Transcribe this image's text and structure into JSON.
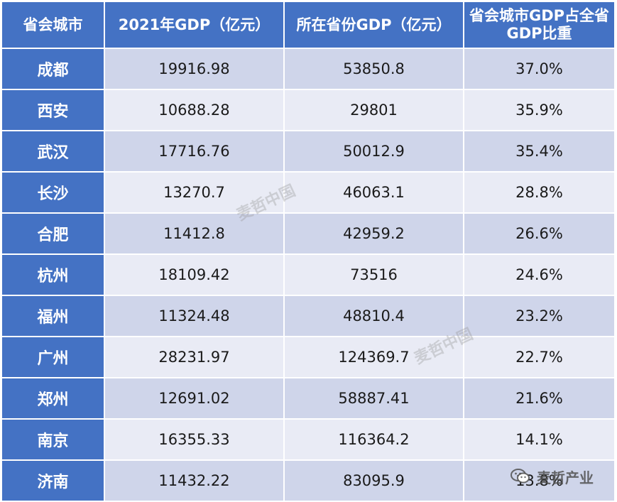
{
  "table": {
    "headers": [
      "省会城市",
      "2021年GDP（亿元）",
      "所在省份GDP（亿元）",
      "省会城市GDP占全省GDP比重"
    ],
    "rows": [
      {
        "city": "成都",
        "gdp": "19916.98",
        "province_gdp": "53850.8",
        "ratio": "37.0%"
      },
      {
        "city": "西安",
        "gdp": "10688.28",
        "province_gdp": "29801",
        "ratio": "35.9%"
      },
      {
        "city": "武汉",
        "gdp": "17716.76",
        "province_gdp": "50012.9",
        "ratio": "35.4%"
      },
      {
        "city": "长沙",
        "gdp": "13270.7",
        "province_gdp": "46063.1",
        "ratio": "28.8%"
      },
      {
        "city": "合肥",
        "gdp": "11412.8",
        "province_gdp": "42959.2",
        "ratio": "26.6%"
      },
      {
        "city": "杭州",
        "gdp": "18109.42",
        "province_gdp": "73516",
        "ratio": "24.6%"
      },
      {
        "city": "福州",
        "gdp": "11324.48",
        "province_gdp": "48810.4",
        "ratio": "23.2%"
      },
      {
        "city": "广州",
        "gdp": "28231.97",
        "province_gdp": "124369.7",
        "ratio": "22.7%"
      },
      {
        "city": "郑州",
        "gdp": "12691.02",
        "province_gdp": "58887.41",
        "ratio": "21.6%"
      },
      {
        "city": "南京",
        "gdp": "16355.33",
        "province_gdp": "116364.2",
        "ratio": "14.1%"
      },
      {
        "city": "济南",
        "gdp": "11432.22",
        "province_gdp": "83095.9",
        "ratio": "13.8%"
      }
    ]
  },
  "watermarks": [
    "麦哲中国",
    "麦哲中国"
  ],
  "brand": {
    "icon": "wechat-icon",
    "label": "麦哲产业"
  },
  "colors": {
    "header_bg": "#4472c4",
    "row_odd_bg": "#cfd5ea",
    "row_even_bg": "#e9ebf5"
  }
}
